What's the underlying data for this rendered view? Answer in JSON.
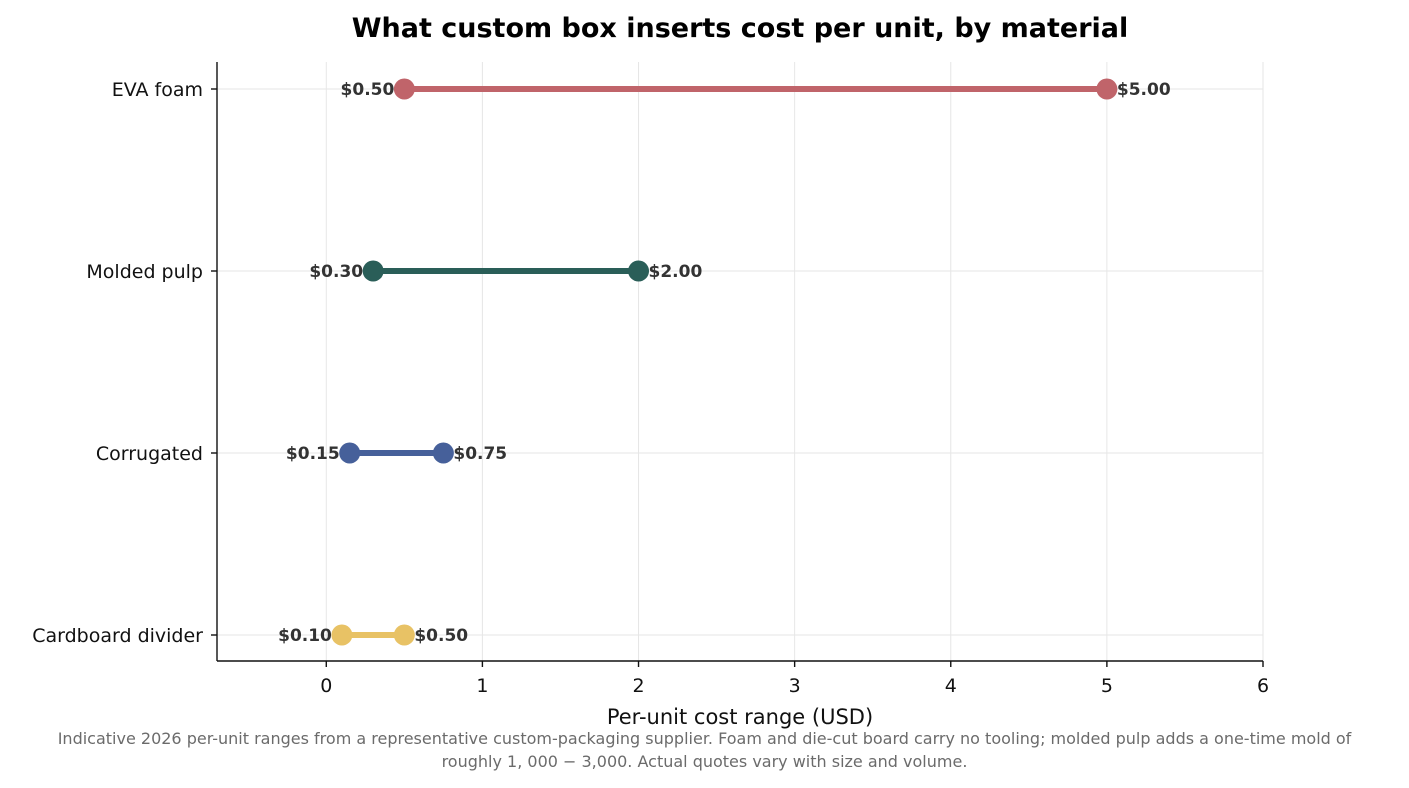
{
  "chart_data": {
    "type": "dumbbell",
    "title": "What custom box inserts cost per unit, by material",
    "xlabel": "Per-unit cost range (USD)",
    "ylabel": "",
    "xlim": [
      -0.7,
      6
    ],
    "xticks": [
      0,
      1,
      2,
      3,
      4,
      5,
      6
    ],
    "grid": true,
    "categories": [
      "EVA foam",
      "Molded pulp",
      "Corrugated",
      "Cardboard divider"
    ],
    "series": [
      {
        "category": "EVA foam",
        "low": 0.5,
        "high": 5.0,
        "low_label": "$0.50",
        "high_label": "$5.00",
        "color": "#c0646a"
      },
      {
        "category": "Molded pulp",
        "low": 0.3,
        "high": 2.0,
        "low_label": "$0.30",
        "high_label": "$2.00",
        "color": "#2a5e58"
      },
      {
        "category": "Corrugated",
        "low": 0.15,
        "high": 0.75,
        "low_label": "$0.15",
        "high_label": "$0.75",
        "color": "#46609a"
      },
      {
        "category": "Cardboard divider",
        "low": 0.1,
        "high": 0.5,
        "low_label": "$0.10",
        "high_label": "$0.50",
        "color": "#e8c265"
      }
    ]
  },
  "caption": {
    "line1": "Indicative 2026 per-unit ranges from a representative custom-packaging supplier. Foam and die-cut board carry no tooling; molded pulp adds a one-time mold of",
    "line2": "roughly 1, 000 − 3,000. Actual quotes vary with size and volume."
  }
}
